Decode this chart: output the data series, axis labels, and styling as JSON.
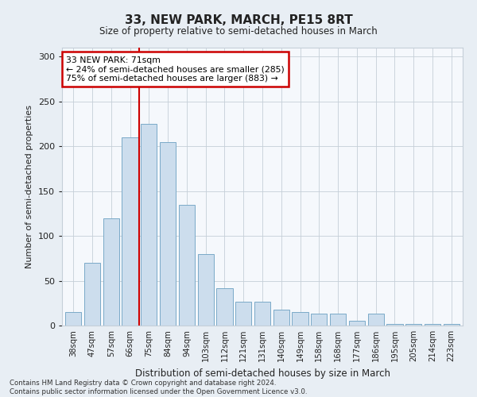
{
  "title": "33, NEW PARK, MARCH, PE15 8RT",
  "subtitle": "Size of property relative to semi-detached houses in March",
  "xlabel": "Distribution of semi-detached houses by size in March",
  "ylabel": "Number of semi-detached properties",
  "categories": [
    "38sqm",
    "47sqm",
    "57sqm",
    "66sqm",
    "75sqm",
    "84sqm",
    "94sqm",
    "103sqm",
    "112sqm",
    "121sqm",
    "131sqm",
    "140sqm",
    "149sqm",
    "158sqm",
    "168sqm",
    "177sqm",
    "186sqm",
    "195sqm",
    "205sqm",
    "214sqm",
    "223sqm"
  ],
  "values": [
    15,
    70,
    120,
    210,
    225,
    205,
    135,
    80,
    42,
    27,
    27,
    18,
    15,
    13,
    13,
    5,
    13,
    2,
    2,
    2,
    2
  ],
  "bar_color": "#ccdded",
  "bar_edge_color": "#7aaac8",
  "property_line_color": "#cc0000",
  "property_line_x": 3.5,
  "annotation_text": "33 NEW PARK: 71sqm\n← 24% of semi-detached houses are smaller (285)\n75% of semi-detached houses are larger (883) →",
  "annotation_box_color": "#cc0000",
  "ylim": [
    0,
    310
  ],
  "yticks": [
    0,
    50,
    100,
    150,
    200,
    250,
    300
  ],
  "footnote": "Contains HM Land Registry data © Crown copyright and database right 2024.\nContains public sector information licensed under the Open Government Licence v3.0.",
  "bg_color": "#e8eef4",
  "plot_bg_color": "#f5f8fc",
  "grid_color": "#c5cfd8"
}
